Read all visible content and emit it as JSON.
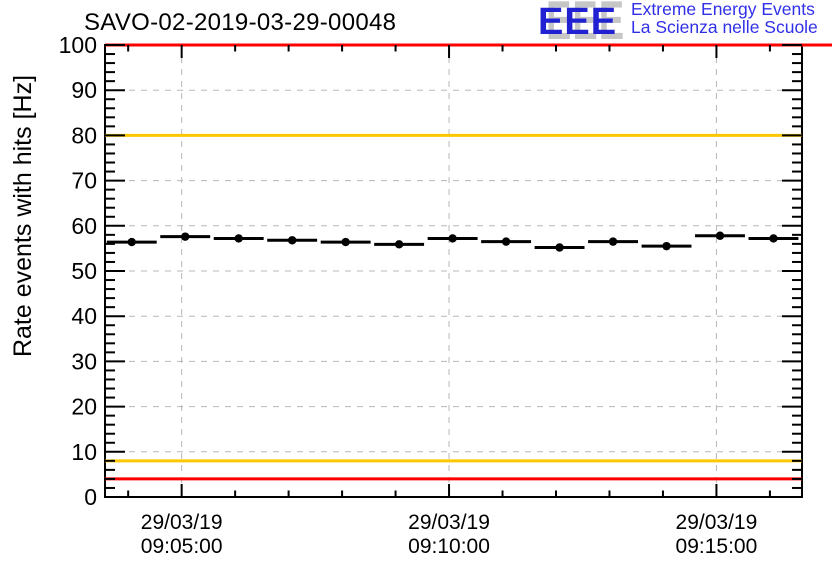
{
  "header": {
    "title": "SAVO-02-2019-03-29-00048",
    "logo": {
      "acronym": "EEE",
      "line1": "Extreme Energy Events",
      "line2": "La Scienza nelle Scuole",
      "blue": "#2121d2",
      "text_blue": "#3030e8",
      "shadow_gray": "#c6c6c6"
    }
  },
  "chart_data": {
    "type": "scatter",
    "title": "SAVO-02-2019-03-29-00048",
    "xlabel": "",
    "ylabel": "Rate events with hits [Hz]",
    "ylim": [
      0,
      100
    ],
    "y_major_ticks": [
      0,
      10,
      20,
      30,
      40,
      50,
      60,
      70,
      80,
      90,
      100
    ],
    "y_minor_step": 2,
    "x_date": "29/03/19",
    "x_range": [
      "09:03:34",
      "09:16:36"
    ],
    "x_major_ticks": [
      "09:05:00",
      "09:10:00",
      "09:15:00"
    ],
    "x_minor_step_seconds": 60,
    "grid": true,
    "grid_color": "#b8b8b8",
    "marker": {
      "shape": "circle",
      "color": "#000000",
      "size": 4.2
    },
    "xerr_seconds": 28,
    "points": [
      {
        "time": "09:04:04",
        "value": 56.4
      },
      {
        "time": "09:05:04",
        "value": 57.6
      },
      {
        "time": "09:06:04",
        "value": 57.2
      },
      {
        "time": "09:07:04",
        "value": 56.8
      },
      {
        "time": "09:08:04",
        "value": 56.4
      },
      {
        "time": "09:09:04",
        "value": 55.9
      },
      {
        "time": "09:10:04",
        "value": 57.2
      },
      {
        "time": "09:11:04",
        "value": 56.5
      },
      {
        "time": "09:12:04",
        "value": 55.2
      },
      {
        "time": "09:13:04",
        "value": 56.5
      },
      {
        "time": "09:14:04",
        "value": 55.5
      },
      {
        "time": "09:15:04",
        "value": 57.8
      },
      {
        "time": "09:16:04",
        "value": 57.2
      }
    ],
    "threshold_lines": [
      {
        "name": "alarm-high",
        "value": 100,
        "color": "#ff0000",
        "to_edge": true
      },
      {
        "name": "warn-high",
        "value": 80,
        "color": "#fcc700",
        "to_edge": false
      },
      {
        "name": "warn-low",
        "value": 8,
        "color": "#fcc700",
        "to_edge": false
      },
      {
        "name": "alarm-low",
        "value": 4,
        "color": "#ff0000",
        "to_edge": false
      }
    ],
    "legend": null
  }
}
